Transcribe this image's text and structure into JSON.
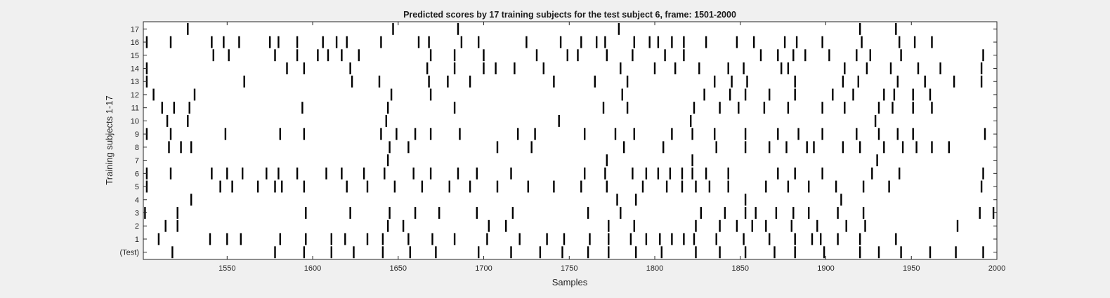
{
  "chart_data": {
    "type": "scatter",
    "title": "Predicted scores by 17 training subjects for the test subject 6, frame: 1501-2000",
    "xlabel": "Samples",
    "ylabel": "Training subjects 1-17",
    "xlim": [
      1501,
      2000
    ],
    "xticks": [
      "1550",
      "1600",
      "1650",
      "1700",
      "1750",
      "1800",
      "1850",
      "1900",
      "1950",
      "2000"
    ],
    "xtick_values": [
      1550,
      1600,
      1650,
      1700,
      1750,
      1800,
      1850,
      1900,
      1950,
      2000
    ],
    "yticks": [
      "(Test)",
      "1",
      "2",
      "3",
      "4",
      "5",
      "6",
      "7",
      "8",
      "9",
      "10",
      "11",
      "12",
      "13",
      "14",
      "15",
      "16",
      "17"
    ],
    "grid": false,
    "legend": "none",
    "rows": [
      {
        "label": "(Test)",
        "events": [
          1518,
          1578,
          1595,
          1611,
          1624,
          1641,
          1657,
          1672,
          1697,
          1716,
          1733,
          1746,
          1761,
          1773,
          1789,
          1804,
          1824,
          1838,
          1853,
          1870,
          1882,
          1899,
          1920,
          1931,
          1944,
          1961,
          1976,
          1992
        ]
      },
      {
        "label": "1",
        "events": [
          1510,
          1540,
          1550,
          1558,
          1581,
          1596,
          1611,
          1619,
          1632,
          1641,
          1656,
          1670,
          1683,
          1702,
          1721,
          1737,
          1747,
          1762,
          1773,
          1786,
          1795,
          1803,
          1810,
          1817,
          1823,
          1836,
          1852,
          1867,
          1882,
          1892,
          1897,
          1907,
          1920,
          1941
        ]
      },
      {
        "label": "2",
        "events": [
          1514,
          1521,
          1644,
          1653,
          1703,
          1713,
          1773,
          1788,
          1824,
          1838,
          1848,
          1857,
          1865,
          1880,
          1895,
          1912,
          1923,
          1977
        ]
      },
      {
        "label": "3",
        "events": [
          1502,
          1521,
          1596,
          1622,
          1645,
          1660,
          1674,
          1696,
          1717,
          1761,
          1780,
          1827,
          1841,
          1853,
          1859,
          1871,
          1881,
          1890,
          1907,
          1922,
          1990,
          1998
        ]
      },
      {
        "label": "4",
        "events": [
          1529,
          1778,
          1789,
          1853,
          1909
        ]
      },
      {
        "label": "5",
        "events": [
          1503,
          1546,
          1553,
          1568,
          1578,
          1582,
          1595,
          1620,
          1632,
          1648,
          1664,
          1680,
          1692,
          1708,
          1726,
          1741,
          1757,
          1772,
          1793,
          1807,
          1816,
          1824,
          1832,
          1843,
          1865,
          1878,
          1890,
          1906,
          1922,
          1937,
          1991
        ]
      },
      {
        "label": "6",
        "events": [
          1503,
          1517,
          1541,
          1550,
          1559,
          1573,
          1580,
          1591,
          1608,
          1617,
          1630,
          1642,
          1659,
          1669,
          1685,
          1696,
          1716,
          1759,
          1771,
          1787,
          1795,
          1802,
          1809,
          1816,
          1822,
          1830,
          1843,
          1872,
          1882,
          1898,
          1927,
          1943,
          1992
        ]
      },
      {
        "label": "7",
        "events": [
          1644,
          1772,
          1822,
          1930
        ]
      },
      {
        "label": "8",
        "events": [
          1516,
          1523,
          1529,
          1645,
          1656,
          1708,
          1728,
          1782,
          1805,
          1836,
          1853,
          1867,
          1877,
          1889,
          1893,
          1910,
          1920,
          1934,
          1945,
          1953,
          1962,
          1972
        ]
      },
      {
        "label": "9",
        "events": [
          1503,
          1517,
          1549,
          1581,
          1595,
          1640,
          1649,
          1660,
          1669,
          1686,
          1720,
          1730,
          1759,
          1777,
          1788,
          1810,
          1822,
          1835,
          1853,
          1872,
          1884,
          1898,
          1918,
          1931,
          1942,
          1951,
          1993
        ]
      },
      {
        "label": "10",
        "events": [
          1515,
          1527,
          1643,
          1744,
          1821,
          1929
        ]
      },
      {
        "label": "11",
        "events": [
          1512,
          1519,
          1528,
          1594,
          1644,
          1683,
          1770,
          1784,
          1823,
          1838,
          1849,
          1864,
          1878,
          1898,
          1911,
          1931,
          1939,
          1951,
          1962
        ]
      },
      {
        "label": "12",
        "events": [
          1507,
          1531,
          1646,
          1669,
          1781,
          1829,
          1844,
          1853,
          1867,
          1882,
          1904,
          1916,
          1934,
          1940,
          1951,
          1961
        ]
      },
      {
        "label": "13",
        "events": [
          1503,
          1560,
          1623,
          1639,
          1668,
          1679,
          1692,
          1741,
          1765,
          1784,
          1835,
          1845,
          1854,
          1882,
          1910,
          1919,
          1942,
          1958,
          1975,
          1991
        ]
      },
      {
        "label": "14",
        "events": [
          1503,
          1585,
          1595,
          1622,
          1667,
          1683,
          1700,
          1707,
          1718,
          1735,
          1780,
          1800,
          1812,
          1826,
          1843,
          1852,
          1874,
          1878,
          1911,
          1924,
          1938,
          1954,
          1967,
          1991
        ]
      },
      {
        "label": "15",
        "events": [
          1542,
          1551,
          1578,
          1591,
          1603,
          1609,
          1617,
          1627,
          1669,
          1683,
          1700,
          1731,
          1749,
          1755,
          1772,
          1787,
          1806,
          1817,
          1862,
          1872,
          1881,
          1888,
          1902,
          1918,
          1926,
          1944,
          1992
        ]
      },
      {
        "label": "16",
        "events": [
          1503,
          1517,
          1541,
          1548,
          1557,
          1575,
          1580,
          1591,
          1606,
          1614,
          1620,
          1640,
          1662,
          1668,
          1687,
          1697,
          1725,
          1745,
          1757,
          1766,
          1771,
          1788,
          1797,
          1802,
          1810,
          1817,
          1830,
          1848,
          1858,
          1876,
          1883,
          1898,
          1921,
          1943,
          1952,
          1962
        ]
      },
      {
        "label": "17",
        "events": [
          1527,
          1647,
          1685,
          1779,
          1920,
          1941
        ]
      }
    ]
  }
}
